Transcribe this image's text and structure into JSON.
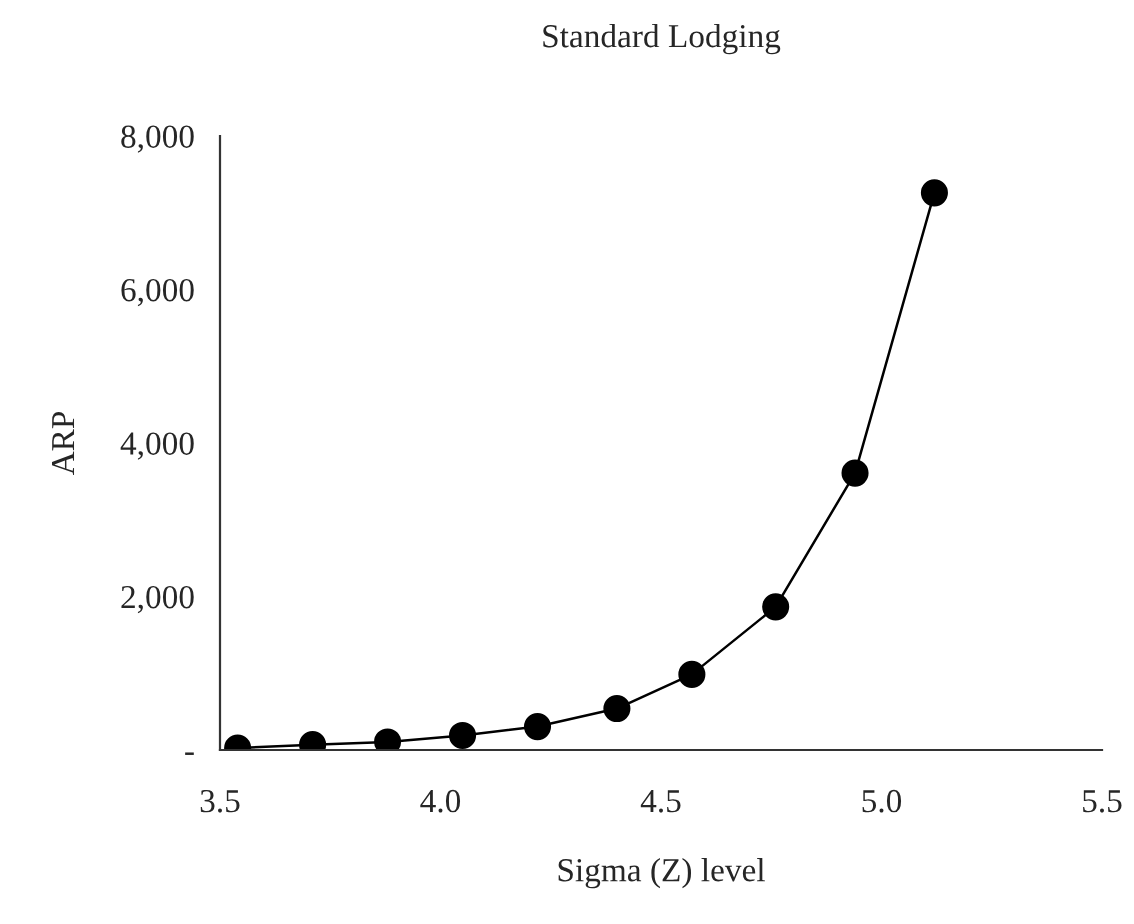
{
  "chart_data": {
    "type": "line",
    "title": "Standard Lodging",
    "xlabel": "Sigma (Z) level",
    "ylabel": "ARP",
    "x": [
      3.54,
      3.71,
      3.88,
      4.05,
      4.22,
      4.4,
      4.57,
      4.76,
      4.94,
      5.12
    ],
    "series": [
      {
        "color": "#000000",
        "values": [
          26,
          70,
          105,
          190,
          305,
          540,
          985,
          1865,
          3608,
          7259
        ]
      }
    ],
    "xlim": [
      3.5,
      5.5
    ],
    "xticks": [
      {
        "value": 3.5,
        "label": "3.5"
      },
      {
        "value": 4.0,
        "label": "4.0"
      },
      {
        "value": 4.5,
        "label": "4.5"
      },
      {
        "value": 5.0,
        "label": "5.0"
      },
      {
        "value": 5.5,
        "label": "5.5"
      }
    ],
    "ylim": [
      0,
      8000
    ],
    "yticks": [
      {
        "value": 0,
        "label": "-"
      },
      {
        "value": 2000,
        "label": "2,000"
      },
      {
        "value": 4000,
        "label": "4,000"
      },
      {
        "value": 6000,
        "label": "6,000"
      },
      {
        "value": 8000,
        "label": "8,000"
      }
    ],
    "marker": "circle",
    "line_style": "solid",
    "grid": false,
    "legend": false
  }
}
